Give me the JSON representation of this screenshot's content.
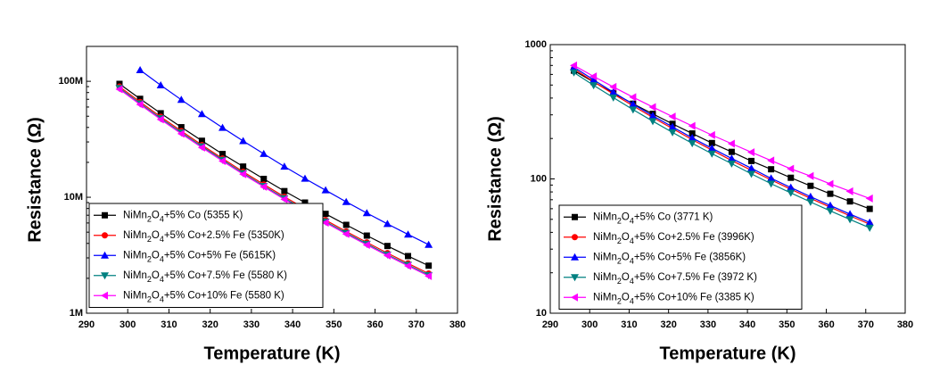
{
  "chart_data": [
    {
      "type": "line",
      "log_y": true,
      "legend": "lower left",
      "x_label": "Temperature (K)",
      "y_label": "Resistance (Ω)",
      "xlim": [
        290,
        380
      ],
      "xticks": [
        290,
        300,
        310,
        320,
        330,
        340,
        350,
        360,
        370,
        380
      ],
      "ylim": [
        1000000,
        200000000
      ],
      "yticks": [
        {
          "value": 1000000,
          "label": "1M"
        },
        {
          "value": 10000000,
          "label": "10M"
        },
        {
          "value": 100000000,
          "label": "100M"
        }
      ],
      "x": [
        298,
        303,
        308,
        313,
        318,
        323,
        328,
        333,
        338,
        343,
        348,
        353,
        358,
        363,
        368,
        373
      ],
      "series": [
        {
          "name": "NiMn2O4+5% Co (5355 K)",
          "color": "#000000",
          "marker": "square",
          "values": [
            95000000,
            70600000,
            53000000,
            40200000,
            30700000,
            23600000,
            18400000,
            14400000,
            11300000,
            9000000,
            7190000,
            5780000,
            4670000,
            3800000,
            3110000,
            2570000
          ]
        },
        {
          "name": "NiMn2O4+5% Co+2.5% Fe (5350K)",
          "color": "#ff0000",
          "marker": "circle",
          "values": [
            90000000,
            66400000,
            49400000,
            37200000,
            28200000,
            21600000,
            16600000,
            12900000,
            10100000,
            7990000,
            6350000,
            5070000,
            4080000,
            3300000,
            2690000,
            2200000
          ]
        },
        {
          "name": "NiMn2O4+5% Co+5% Fe (5615K)",
          "color": "#0000ff",
          "marker": "triangle-up",
          "values": [
            null,
            125000000,
            92600000,
            69300000,
            52300000,
            39800000,
            30600000,
            23700000,
            18400000,
            14500000,
            11500000,
            9130000,
            7310000,
            5890000,
            4780000,
            3900000
          ]
        },
        {
          "name": "NiMn2O4+5% Co+7.5% Fe (5580 K)",
          "color": "#008080",
          "marker": "triangle-down",
          "values": [
            87300000,
            64400000,
            47900000,
            36100000,
            27400000,
            21000000,
            16100000,
            12500000,
            9800000,
            7750000,
            6160000,
            4920000,
            3960000,
            3200000,
            2610000,
            2130000
          ]
        },
        {
          "name": "NiMn2O4+5% Co+10% Fe (5580 K)",
          "color": "#ff00ff",
          "marker": "triangle-left",
          "values": [
            85500000,
            63100000,
            46900000,
            35300000,
            26800000,
            20500000,
            15800000,
            12300000,
            9600000,
            7590000,
            6030000,
            4820000,
            3880000,
            3140000,
            2560000,
            2090000
          ]
        }
      ]
    },
    {
      "type": "line",
      "log_y": true,
      "legend": "lower left",
      "x_label": "Temperature (K)",
      "y_label": "Resistance (Ω)",
      "xlim": [
        290,
        380
      ],
      "xticks": [
        290,
        300,
        310,
        320,
        330,
        340,
        350,
        360,
        370,
        380
      ],
      "ylim": [
        10,
        1000
      ],
      "yticks": [
        10,
        100,
        1000
      ],
      "x": [
        296,
        301,
        306,
        311,
        316,
        321,
        326,
        331,
        336,
        341,
        346,
        351,
        356,
        361,
        366,
        371
      ],
      "series": [
        {
          "name": "NiMn2O4+5% Co (3771 K)",
          "color": "#000000",
          "marker": "square",
          "values": [
            640,
            527,
            436,
            363,
            305,
            257,
            218,
            185,
            159,
            136,
            118,
            102,
            88.8,
            77.5,
            68.0,
            59.8
          ]
        },
        {
          "name": "NiMn2O4+5% Co+2.5% Fe (3996K)",
          "color": "#ff0000",
          "marker": "circle",
          "values": [
            660,
            530,
            429,
            350,
            287,
            237,
            196,
            164,
            137,
            116,
            98.3,
            83.8,
            71.6,
            61.6,
            53.1,
            46.0
          ]
        },
        {
          "name": "NiMn2O4+5% Co+5% Fe (3856K)",
          "color": "#0000ff",
          "marker": "triangle-up",
          "values": [
            680,
            546,
            442,
            360,
            295,
            244,
            202,
            169,
            142,
            120,
            101,
            86.3,
            73.8,
            63.4,
            54.7,
            47.4
          ]
        },
        {
          "name": "NiMn2O4+5% Co+7.5% Fe (3972 K)",
          "color": "#008080",
          "marker": "triangle-down",
          "values": [
            620,
            498,
            403,
            328,
            269,
            222,
            184,
            154,
            130,
            109,
            92.1,
            78.7,
            67.3,
            57.8,
            49.9,
            43.2
          ]
        },
        {
          "name": "NiMn2O4+5% Co+10% Fe (3385 K)",
          "color": "#ff00ff",
          "marker": "triangle-left",
          "values": [
            700,
            580,
            484,
            406,
            343,
            291,
            248,
            212,
            183,
            158,
            137,
            119,
            105,
            91.8,
            80.9,
            71.5
          ]
        }
      ]
    }
  ]
}
